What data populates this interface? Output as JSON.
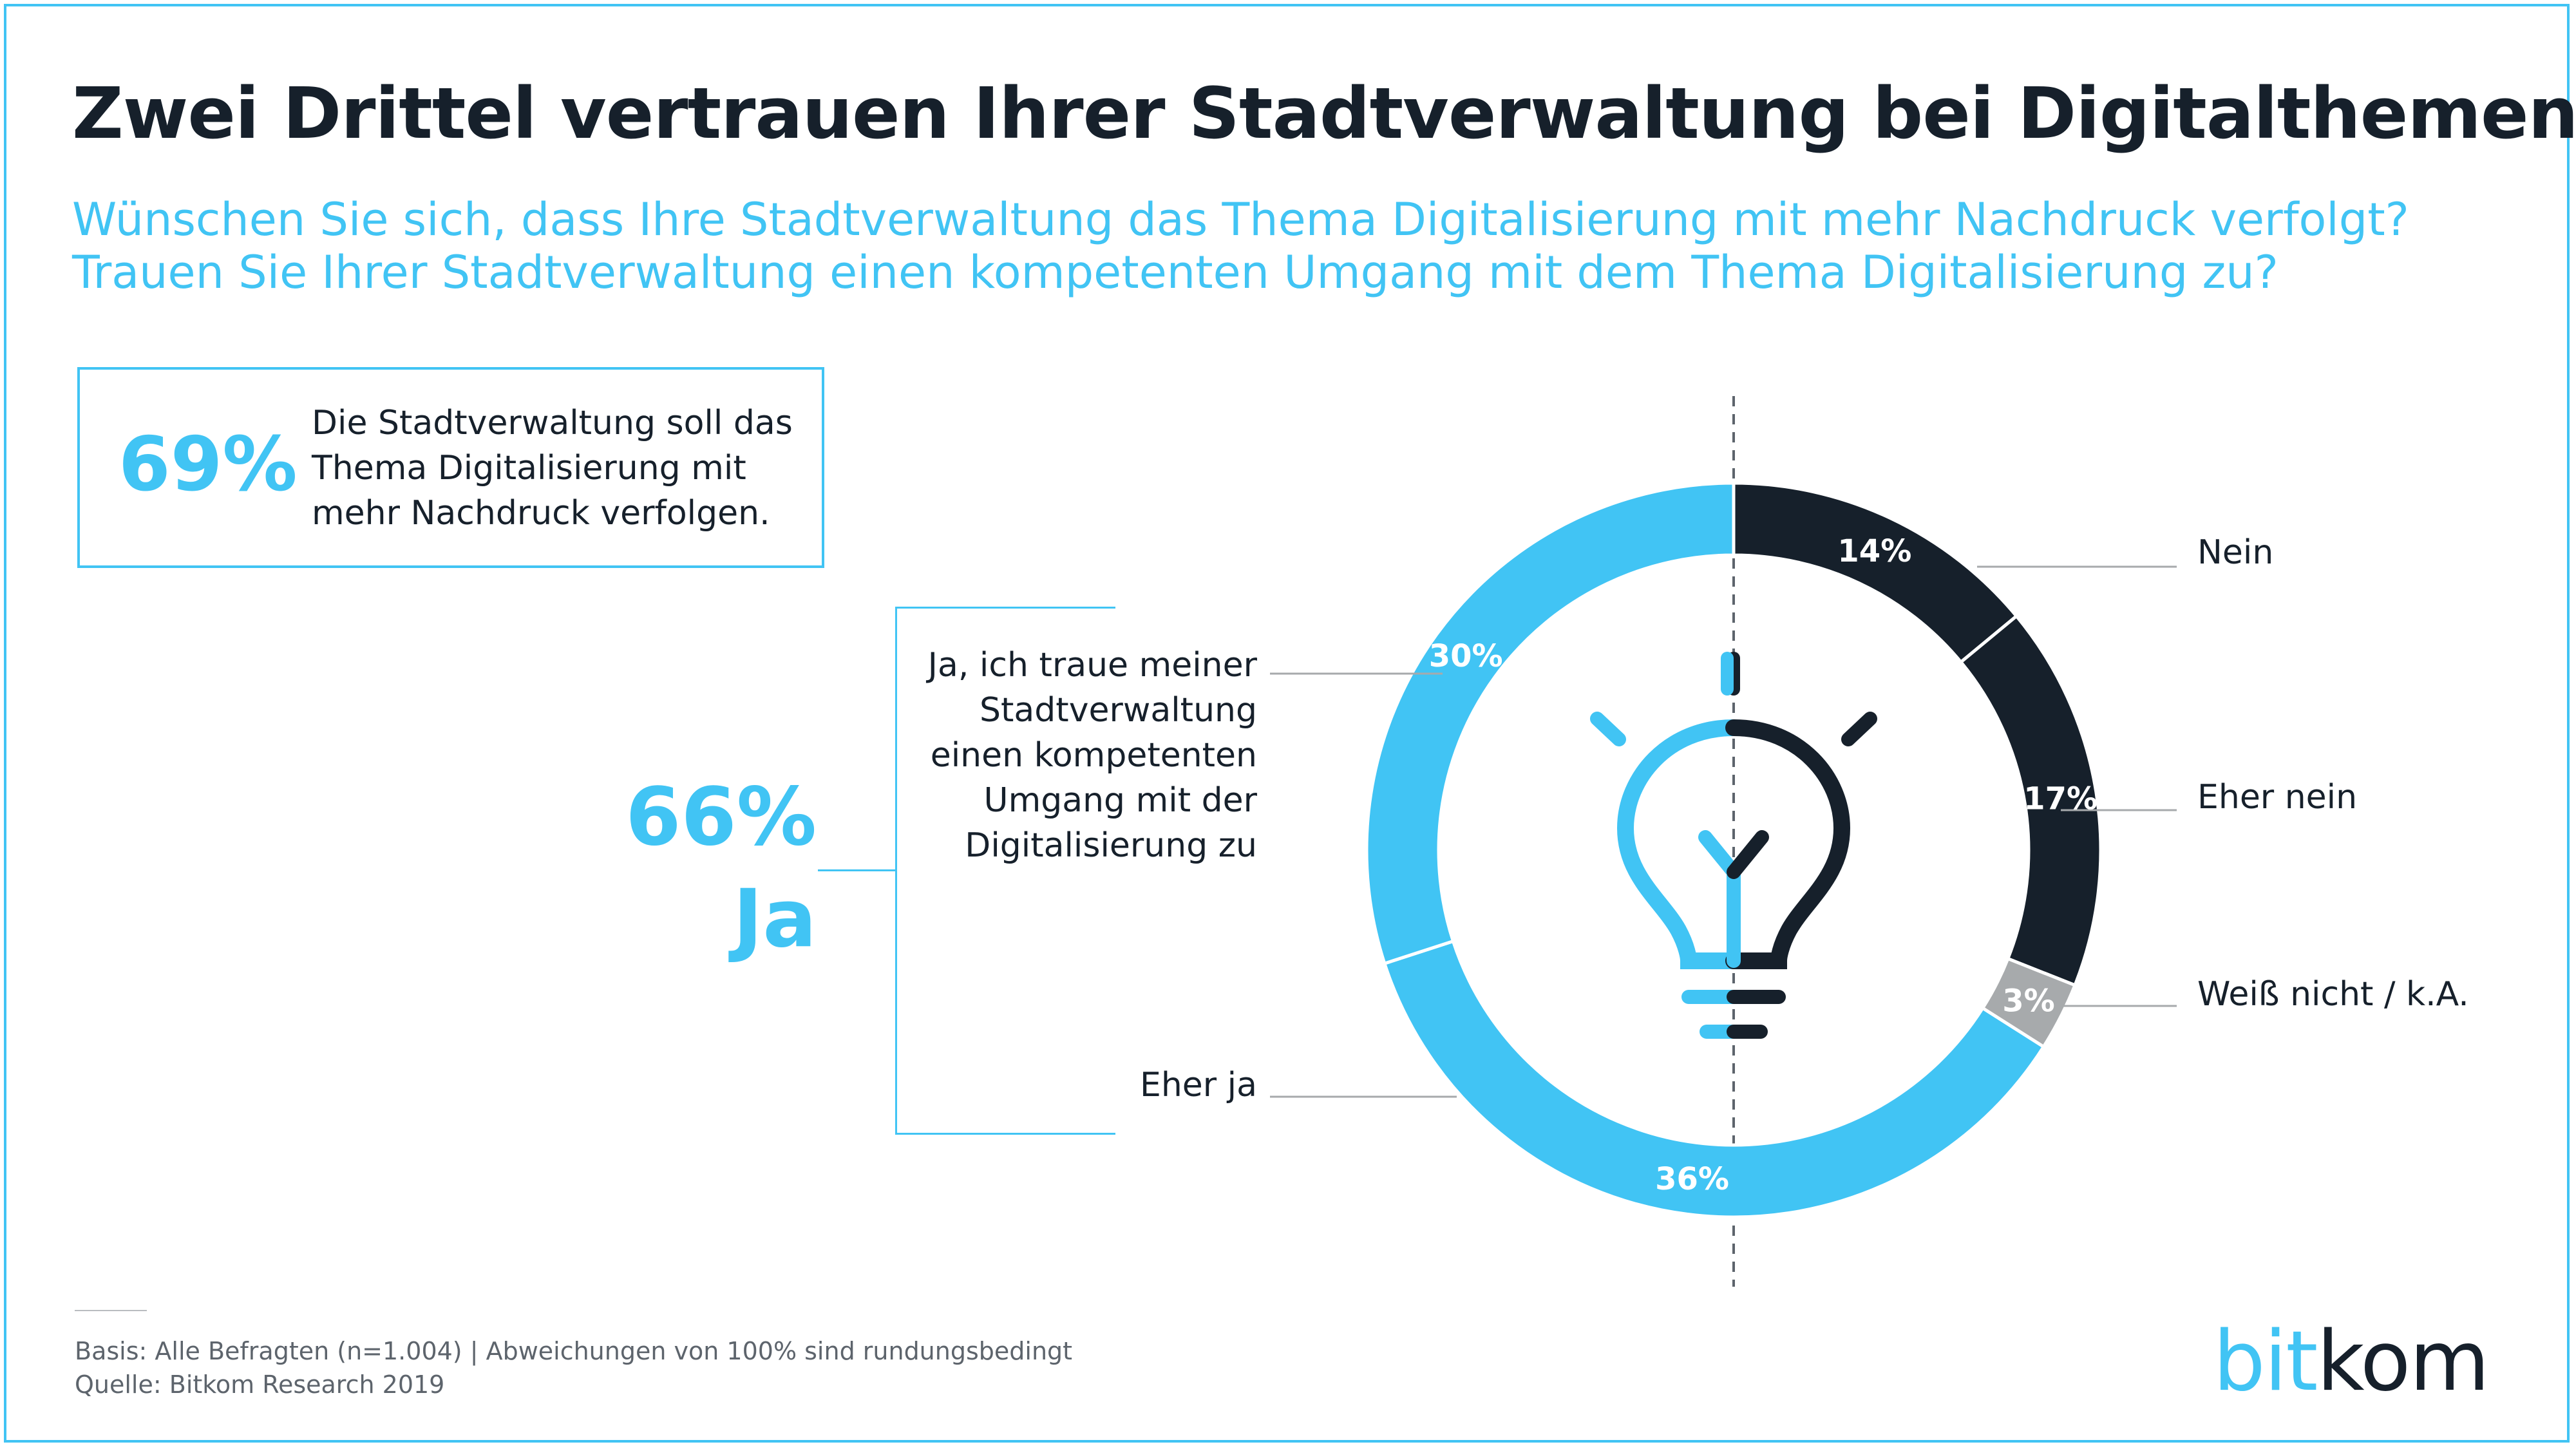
{
  "title": "Zwei Drittel vertrauen Ihrer Stadtverwaltung bei Digitalthemen",
  "subtitle": [
    "Wünschen Sie sich, dass Ihre Stadtverwaltung das Thema Digitalisierung mit mehr Nachdruck verfolgt?",
    "Trauen Sie Ihrer Stadtverwaltung einen kompetenten Umgang mit dem Thema Digitalisierung zu?"
  ],
  "highlight_box": {
    "percent": "69%",
    "text": [
      "Die Stadtverwaltung soll das",
      "Thema Digitalisierung mit",
      "mehr Nachdruck verfolgen."
    ]
  },
  "summary": {
    "percent": "66%",
    "label": "Ja"
  },
  "ja_text": [
    "Ja, ich traue meiner",
    "Stadtverwaltung",
    "einen kompetenten",
    "Umgang mit der",
    "Digitalisierung zu"
  ],
  "eher_ja_label": "Eher ja",
  "footer": {
    "basis": "Basis: Alle Befragten (n=1.004) | Abweichungen von 100% sind rundungsbedingt",
    "source": "Quelle: Bitkom Research 2019"
  },
  "logo": {
    "part1": "bit",
    "part2": "kom"
  },
  "colors": {
    "accent": "#41c4f4",
    "dark": "#16202b",
    "gray": "#a7aaac"
  },
  "icon": "lightbulb-icon",
  "chart_data": {
    "type": "pie",
    "variant": "donut",
    "segments": [
      {
        "label": "Nein",
        "value": 14,
        "display": "14%",
        "color": "#16202b"
      },
      {
        "label": "Eher nein",
        "value": 17,
        "display": "17%",
        "color": "#16202b"
      },
      {
        "label": "Weiß nicht / k.A.",
        "value": 3,
        "display": "3%",
        "color": "#a7aaac"
      },
      {
        "label": "Eher ja",
        "value": 36,
        "display": "36%",
        "color": "#41c4f4"
      },
      {
        "label": "Ja, ich traue meiner Stadtverwaltung einen kompetenten Umgang mit der Digitalisierung zu",
        "value": 30,
        "display": "30%",
        "color": "#41c4f4"
      }
    ]
  }
}
